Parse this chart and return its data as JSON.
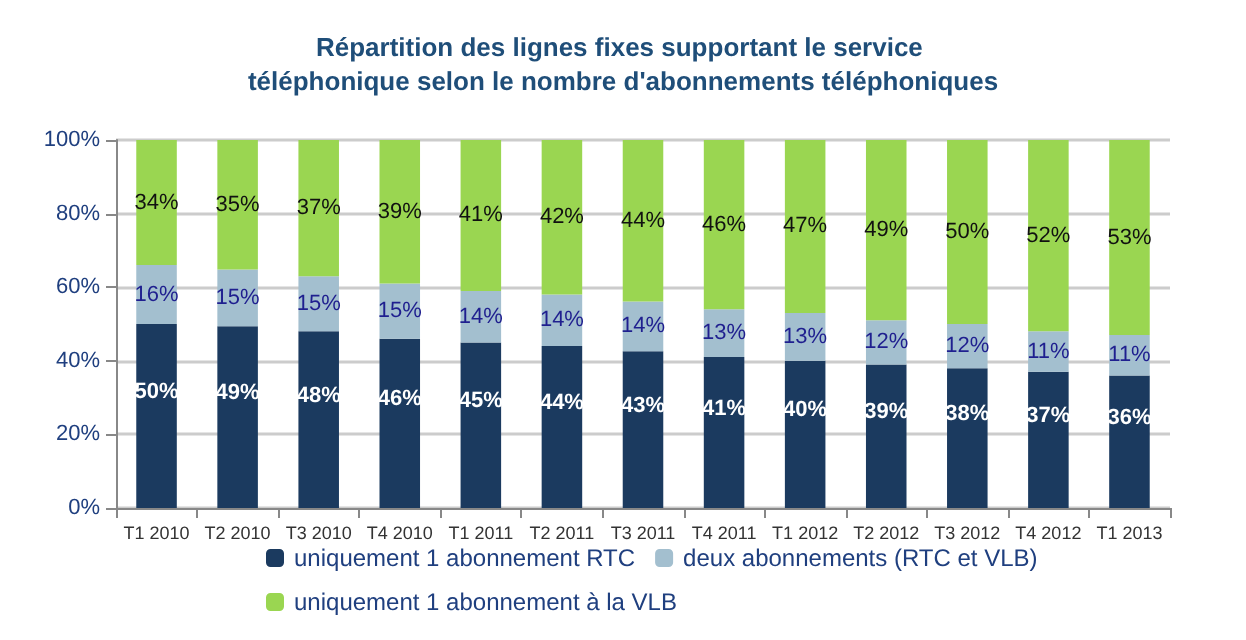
{
  "chart_data": {
    "type": "bar",
    "stacked": true,
    "title": "Répartition des lignes fixes supportant le service téléphonique selon le nombre d'abonnements téléphoniques",
    "categories": [
      "T1 2010",
      "T2 2010",
      "T3 2010",
      "T4 2010",
      "T1 2011",
      "T2 2011",
      "T3 2011",
      "T4 2011",
      "T1 2012",
      "T2 2012",
      "T3 2012",
      "T4 2012",
      "T1 2013"
    ],
    "series": [
      {
        "name": "uniquement 1 abonnement RTC",
        "color": "#1b3a5f",
        "values": [
          50,
          49.4,
          48,
          46,
          45,
          44,
          42.6,
          41,
          40,
          39,
          38,
          37,
          36
        ],
        "value_labels": [
          "50%",
          "49%",
          "48%",
          "46%",
          "45%",
          "44%",
          "43%",
          "41%",
          "40%",
          "39%",
          "38%",
          "37%",
          "36%"
        ]
      },
      {
        "name": "deux abonnements (RTC et VLB)",
        "color": "#a3bfcf",
        "values": [
          16,
          15.4,
          15,
          15,
          14,
          14,
          13.5,
          13,
          13,
          12,
          12,
          11,
          11
        ],
        "value_labels": [
          "16%",
          "15%",
          "15%",
          "15%",
          "14%",
          "14%",
          "14%",
          "13%",
          "13%",
          "12%",
          "12%",
          "11%",
          "11%"
        ]
      },
      {
        "name": "uniquement 1 abonnement à la VLB",
        "color": "#9ad651",
        "values": [
          34,
          35.2,
          37,
          39,
          41,
          42,
          43.9,
          46,
          47,
          49,
          50,
          52,
          53
        ],
        "value_labels": [
          "34%",
          "35%",
          "37%",
          "39%",
          "41%",
          "42%",
          "44%",
          "46%",
          "47%",
          "49%",
          "50%",
          "52%",
          "53%"
        ]
      }
    ],
    "ylim": [
      0,
      100
    ],
    "yticks": [
      {
        "value": 0,
        "label": "0%"
      },
      {
        "value": 20,
        "label": "20%"
      },
      {
        "value": 40,
        "label": "40%"
      },
      {
        "value": 60,
        "label": "60%"
      },
      {
        "value": 80,
        "label": "80%"
      },
      {
        "value": 100,
        "label": "100%"
      }
    ],
    "grid": "y",
    "legend": "bottom"
  }
}
